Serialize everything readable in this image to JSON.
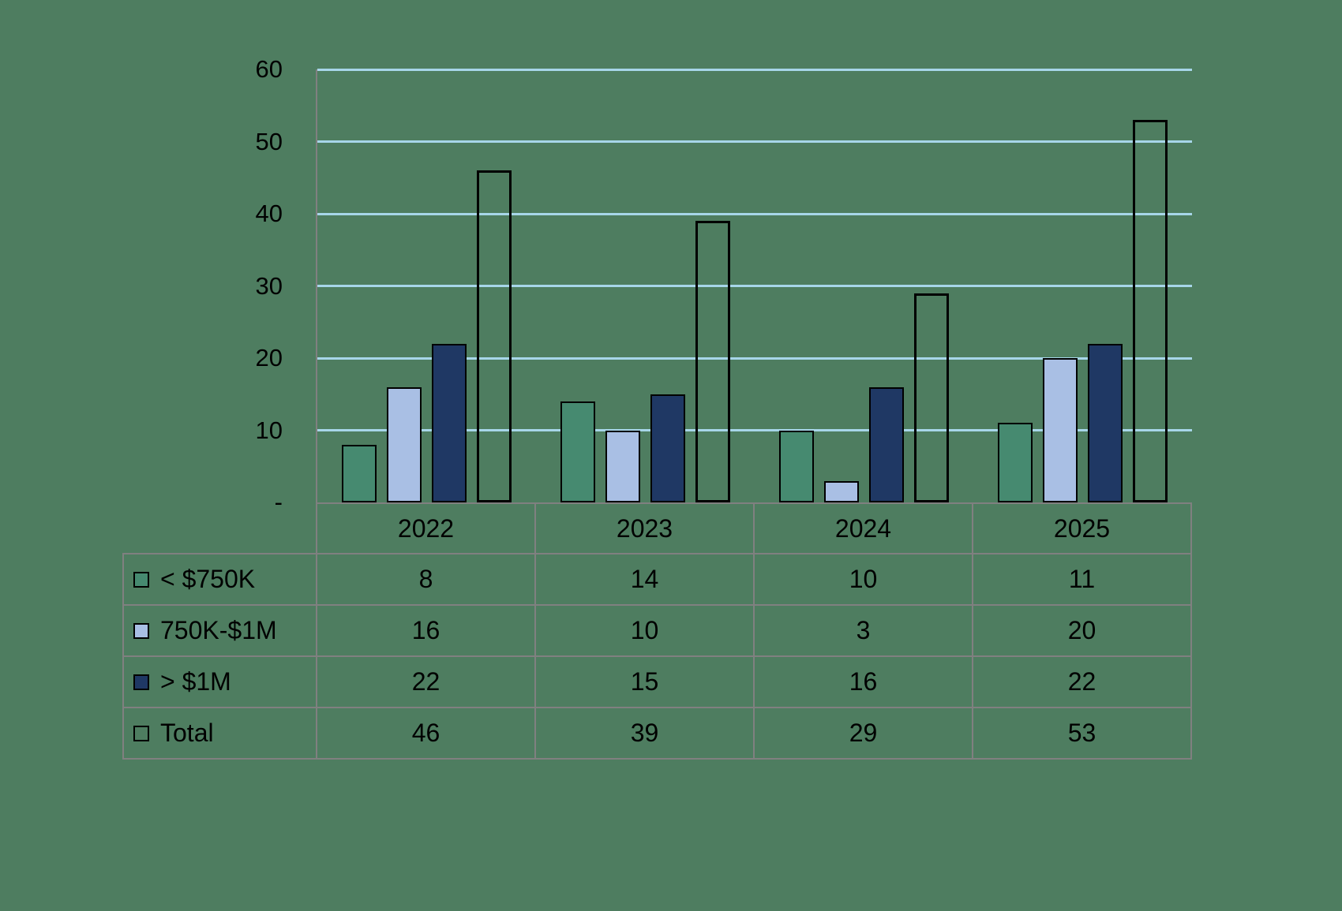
{
  "chart_data": {
    "type": "bar",
    "title": "",
    "xlabel": "",
    "ylabel": "",
    "categories": [
      "2022",
      "2023",
      "2024",
      "2025"
    ],
    "series": [
      {
        "name": "< $750K",
        "color": "#468A70",
        "values": [
          8,
          14,
          10,
          11
        ]
      },
      {
        "name": "750K-$1M",
        "color": "#A9BFE4",
        "values": [
          16,
          10,
          3,
          20
        ]
      },
      {
        "name": "> $1M",
        "color": "#1F3864",
        "values": [
          22,
          15,
          16,
          22
        ]
      },
      {
        "name": "Total",
        "color": "none",
        "values": [
          46,
          39,
          29,
          53
        ]
      }
    ],
    "ylim": [
      0,
      60
    ],
    "ytick_interval": 10,
    "ytick_labels": [
      "-",
      "10",
      "20",
      "30",
      "40",
      "50",
      "60"
    ],
    "grid": true,
    "legend_position": "data-table-left"
  },
  "colors": {
    "background": "#4E7D60",
    "gridline": "#A7D6E9",
    "axis_line": "#808080",
    "table_border": "#808080",
    "bar_outline": "#000000",
    "text": "#000000"
  }
}
